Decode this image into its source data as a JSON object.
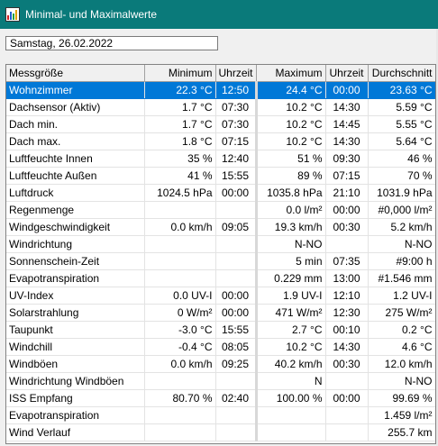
{
  "window": {
    "title": "Minimal- und Maximalwerte",
    "icon": "chart-app-icon"
  },
  "date_field": {
    "value": "Samstag, 26.02.2022"
  },
  "table": {
    "headers": [
      "Messgröße",
      "Minimum",
      "Uhrzeit",
      "Maximum",
      "Uhrzeit",
      "Durchschnitt"
    ],
    "selected_row": 0,
    "rows": [
      [
        "Wohnzimmer",
        "22.3 °C",
        "12:50",
        "24.4 °C",
        "00:00",
        "23.63 °C"
      ],
      [
        "Dachsensor (Aktiv)",
        "1.7 °C",
        "07:30",
        "10.2 °C",
        "14:30",
        "5.59 °C"
      ],
      [
        "Dach min.",
        "1.7 °C",
        "07:30",
        "10.2 °C",
        "14:45",
        "5.55 °C"
      ],
      [
        "Dach max.",
        "1.8 °C",
        "07:15",
        "10.2 °C",
        "14:30",
        "5.64 °C"
      ],
      [
        "Luftfeuchte Innen",
        "35 %",
        "12:40",
        "51 %",
        "09:30",
        "46 %"
      ],
      [
        "Luftfeuchte Außen",
        "41 %",
        "15:55",
        "89 %",
        "07:15",
        "70 %"
      ],
      [
        "Luftdruck",
        "1024.5 hPa",
        "00:00",
        "1035.8 hPa",
        "21:10",
        "1031.9 hPa"
      ],
      [
        "Regenmenge",
        "",
        "",
        "0.0 l/m²",
        "00:00",
        "#0,000 l/m²"
      ],
      [
        "Windgeschwindigkeit",
        "0.0 km/h",
        "09:05",
        "19.3 km/h",
        "00:30",
        "5.2 km/h"
      ],
      [
        "Windrichtung",
        "",
        "",
        "N-NO",
        "",
        "N-NO"
      ],
      [
        "Sonnenschein-Zeit",
        "",
        "",
        "5 min",
        "07:35",
        "#9:00 h"
      ],
      [
        "Evapotranspiration",
        "",
        "",
        "0.229 mm",
        "13:00",
        "#1.546 mm"
      ],
      [
        "UV-Index",
        "0.0 UV-I",
        "00:00",
        "1.9 UV-I",
        "12:10",
        "1.2 UV-I"
      ],
      [
        "Solarstrahlung",
        "0 W/m²",
        "00:00",
        "471 W/m²",
        "12:30",
        "275 W/m²"
      ],
      [
        "Taupunkt",
        "-3.0 °C",
        "15:55",
        "2.7 °C",
        "00:10",
        "0.2 °C"
      ],
      [
        "Windchill",
        "-0.4 °C",
        "08:05",
        "10.2 °C",
        "14:30",
        "4.6 °C"
      ],
      [
        "Windböen",
        "0.0 km/h",
        "09:25",
        "40.2 km/h",
        "00:30",
        "12.0 km/h"
      ],
      [
        "Windrichtung Windböen",
        "",
        "",
        "N",
        "",
        "N-NO"
      ],
      [
        "ISS Empfang",
        "80.70 %",
        "02:40",
        "100.00 %",
        "00:00",
        "99.69 %"
      ],
      [
        "Evapotranspiration",
        "",
        "",
        "",
        "",
        "1.459 l/m²"
      ],
      [
        "Wind Verlauf",
        "",
        "",
        "",
        "",
        "255.7 km"
      ]
    ]
  }
}
